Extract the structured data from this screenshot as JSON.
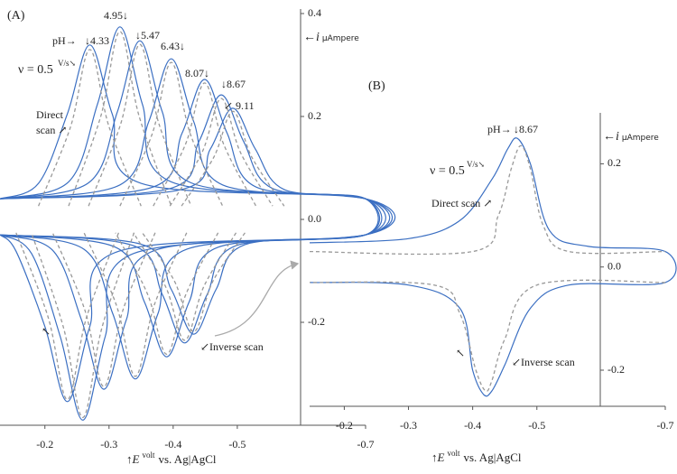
{
  "chart_data": [
    {
      "type": "line",
      "xlim": [
        -0.13,
        -0.7
      ],
      "ylim": [
        -0.4,
        0.4
      ],
      "xticks": [
        -0.2,
        -0.3,
        -0.4,
        -0.5,
        -0.7
      ],
      "yticks": [
        0.4,
        0.2,
        {
          "value": 0,
          "label": "0.0"
        },
        -0.2
      ],
      "xlabel_symbol": "↑E",
      "xlabel_unit": "volt",
      "xlabel": "vs. Ag|AgCl",
      "ylabel_symbol": "←i",
      "ylabel_unit": "μAmpere",
      "annotations": [
        "(A)",
        "pH→",
        "↓4.33",
        "4.95↓",
        "↓5.47",
        "6.43↓",
        "8.07↓",
        "↓8.67",
        "↙ 9.11",
        "ν = 0.5",
        "V/s↘",
        "Direct",
        "scan ↗",
        "↙Inverse scan",
        "↖"
      ],
      "series": [
        {
          "color": "#3b6fc2",
          "style": "solid",
          "x": [
            -0.13,
            -0.19,
            -0.235,
            -0.27,
            -0.305,
            -0.35,
            -0.7,
            -0.7,
            -0.315,
            -0.27,
            -0.235,
            -0.2,
            -0.155,
            -0.13
          ],
          "values": [
            0.04,
            0.07,
            0.205,
            0.339,
            0.205,
            0.07,
            0.04,
            -0.03,
            -0.062,
            -0.208,
            -0.354,
            -0.208,
            -0.062,
            -0.03
          ]
        },
        {
          "color": "#3b6fc2",
          "style": "solid",
          "x": [
            -0.13,
            -0.237,
            -0.282,
            -0.317,
            -0.352,
            -0.397,
            -0.7,
            -0.7,
            -0.339,
            -0.294,
            -0.259,
            -0.224,
            -0.179,
            -0.13
          ],
          "values": [
            0.04,
            0.073,
            0.224,
            0.374,
            0.224,
            0.073,
            0.04,
            -0.03,
            -0.066,
            -0.228,
            -0.39,
            -0.228,
            -0.066,
            -0.03
          ]
        },
        {
          "color": "#3b6fc2",
          "style": "solid",
          "x": [
            -0.13,
            -0.268,
            -0.313,
            -0.348,
            -0.383,
            -0.428,
            -0.7,
            -0.7,
            -0.372,
            -0.327,
            -0.292,
            -0.257,
            -0.212,
            -0.13
          ],
          "values": [
            0.04,
            0.071,
            0.209,
            0.347,
            0.209,
            0.071,
            0.04,
            -0.03,
            -0.06,
            -0.195,
            -0.33,
            -0.195,
            -0.06,
            -0.03
          ]
        },
        {
          "color": "#3b6fc2",
          "style": "solid",
          "x": [
            -0.13,
            -0.317,
            -0.362,
            -0.397,
            -0.432,
            -0.477,
            -0.7,
            -0.7,
            -0.421,
            -0.376,
            -0.341,
            -0.306,
            -0.261,
            -0.13
          ],
          "values": [
            0.04,
            0.067,
            0.19,
            0.312,
            0.19,
            0.067,
            0.04,
            -0.03,
            -0.058,
            -0.184,
            -0.31,
            -0.184,
            -0.058,
            -0.03
          ]
        },
        {
          "color": "#3b6fc2",
          "style": "solid",
          "x": [
            -0.13,
            -0.369,
            -0.414,
            -0.449,
            -0.484,
            -0.529,
            -0.7,
            -0.7,
            -0.47,
            -0.425,
            -0.39,
            -0.355,
            -0.31,
            -0.13
          ],
          "values": [
            0.04,
            0.063,
            0.168,
            0.272,
            0.168,
            0.063,
            0.04,
            -0.03,
            -0.054,
            -0.16,
            -0.267,
            -0.16,
            -0.054,
            -0.03
          ]
        },
        {
          "color": "#3b6fc2",
          "style": "solid",
          "x": [
            -0.13,
            -0.395,
            -0.44,
            -0.475,
            -0.51,
            -0.555,
            -0.7,
            -0.7,
            -0.498,
            -0.453,
            -0.418,
            -0.383,
            -0.338,
            -0.13
          ],
          "values": [
            0.04,
            0.06,
            0.151,
            0.242,
            0.151,
            0.06,
            0.04,
            -0.03,
            -0.051,
            -0.146,
            -0.24,
            -0.146,
            -0.051,
            -0.03
          ]
        },
        {
          "color": "#3b6fc2",
          "style": "solid",
          "x": [
            -0.13,
            -0.413,
            -0.458,
            -0.493,
            -0.528,
            -0.573,
            -0.7,
            -0.7,
            -0.512,
            -0.467,
            -0.432,
            -0.397,
            -0.352,
            -0.13
          ],
          "values": [
            0.04,
            0.058,
            0.137,
            0.216,
            0.137,
            0.058,
            0.04,
            -0.03,
            -0.049,
            -0.136,
            -0.223,
            -0.136,
            -0.049,
            -0.03
          ]
        },
        {
          "color": "#999999",
          "style": "dashed",
          "x": [
            -0.19,
            -0.24,
            -0.27,
            -0.3,
            -0.35,
            null,
            -0.315,
            -0.265,
            -0.235,
            -0.205,
            -0.155
          ],
          "values": [
            0.026,
            0.18,
            0.33,
            0.18,
            0.026,
            null,
            -0.026,
            -0.19,
            -0.35,
            -0.19,
            -0.026
          ]
        },
        {
          "color": "#999999",
          "style": "dashed",
          "x": [
            -0.237,
            -0.287,
            -0.317,
            -0.347,
            -0.397,
            null,
            -0.339,
            -0.289,
            -0.259,
            -0.229,
            -0.179
          ],
          "values": [
            0.026,
            0.2,
            0.365,
            0.2,
            0.026,
            null,
            -0.026,
            -0.21,
            -0.385,
            -0.21,
            -0.026
          ]
        },
        {
          "color": "#999999",
          "style": "dashed",
          "x": [
            -0.268,
            -0.318,
            -0.348,
            -0.378,
            -0.428,
            null,
            -0.372,
            -0.322,
            -0.292,
            -0.262,
            -0.212
          ],
          "values": [
            0.026,
            0.185,
            0.34,
            0.185,
            0.026,
            null,
            -0.026,
            -0.175,
            -0.325,
            -0.175,
            -0.026
          ]
        },
        {
          "color": "#999999",
          "style": "dashed",
          "x": [
            -0.317,
            -0.367,
            -0.397,
            -0.427,
            -0.477,
            null,
            -0.421,
            -0.371,
            -0.341,
            -0.311,
            -0.261
          ],
          "values": [
            0.026,
            0.165,
            0.305,
            0.165,
            0.026,
            null,
            -0.026,
            -0.165,
            -0.305,
            -0.165,
            -0.026
          ]
        },
        {
          "color": "#999999",
          "style": "dashed",
          "x": [
            -0.369,
            -0.419,
            -0.449,
            -0.479,
            -0.529,
            null,
            -0.47,
            -0.42,
            -0.39,
            -0.36,
            -0.31
          ],
          "values": [
            0.026,
            0.145,
            0.265,
            0.145,
            0.026,
            null,
            -0.026,
            -0.145,
            -0.262,
            -0.145,
            -0.026
          ]
        },
        {
          "color": "#999999",
          "style": "dashed",
          "x": [
            -0.395,
            -0.445,
            -0.475,
            -0.505,
            -0.555,
            null,
            -0.498,
            -0.448,
            -0.418,
            -0.388,
            -0.338
          ],
          "values": [
            0.026,
            0.13,
            0.235,
            0.13,
            0.026,
            null,
            -0.026,
            -0.13,
            -0.235,
            -0.13,
            -0.026
          ]
        },
        {
          "color": "#999999",
          "style": "dashed",
          "x": [
            -0.413,
            -0.463,
            -0.493,
            -0.523,
            -0.573,
            null,
            -0.512,
            -0.462,
            -0.432,
            -0.402,
            -0.352
          ],
          "values": [
            0.026,
            0.12,
            0.21,
            0.12,
            0.026,
            null,
            -0.026,
            -0.12,
            -0.218,
            -0.12,
            -0.026
          ]
        }
      ]
    },
    {
      "type": "line",
      "xlim": [
        -0.146,
        -0.7
      ],
      "ylim": [
        -0.27,
        0.29
      ],
      "xticks": [
        -0.2,
        -0.3,
        -0.4,
        -0.5,
        -0.7
      ],
      "yticks": [
        0.2,
        {
          "value": 0,
          "label": "0.0"
        },
        -0.2
      ],
      "xlabel_symbol": "↑E",
      "xlabel_unit": "volt",
      "xlabel": "vs. Ag|AgCl",
      "ylabel_symbol": "←i",
      "ylabel_unit": "μAmpere",
      "annotations": [
        "(B)",
        "pH→",
        "↓8.67",
        "ν = 0.5",
        "V/s↘",
        "Direct scan ↗",
        "↙Inverse scan",
        "↖"
      ],
      "series": [
        {
          "color": "#3b6fc2",
          "style": "solid",
          "x": [
            -0.146,
            -0.3,
            -0.38,
            -0.43,
            -0.455,
            -0.47,
            -0.49,
            -0.52,
            -0.58,
            -0.7,
            -0.7,
            -0.55,
            -0.49,
            -0.45,
            -0.43,
            -0.417,
            -0.4,
            -0.38,
            -0.3,
            -0.146
          ],
          "values": [
            0.047,
            0.055,
            0.09,
            0.17,
            0.23,
            0.249,
            0.2,
            0.07,
            0.04,
            0.03,
            -0.03,
            -0.035,
            -0.08,
            -0.19,
            -0.24,
            -0.247,
            -0.2,
            -0.08,
            -0.035,
            -0.03
          ]
        },
        {
          "color": "#999999",
          "style": "dashed",
          "x": [
            -0.146,
            -0.4,
            -0.44,
            -0.46,
            -0.475,
            -0.49,
            -0.51,
            -0.55,
            -0.7,
            null,
            -0.7,
            -0.5,
            -0.45,
            -0.43,
            -0.42,
            -0.405,
            -0.38,
            -0.34,
            -0.146
          ],
          "values": [
            0.03,
            0.03,
            0.1,
            0.19,
            0.235,
            0.19,
            0.08,
            0.03,
            0.03,
            null,
            -0.03,
            -0.035,
            -0.14,
            -0.22,
            -0.24,
            -0.2,
            -0.09,
            -0.035,
            -0.03
          ]
        }
      ]
    }
  ]
}
